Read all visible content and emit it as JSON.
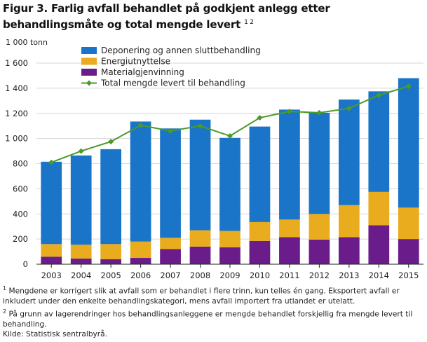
{
  "figure": {
    "title": "Figur 3. Farlig avfall behandlet på godkjent anlegg etter behandlingsmåte og total mengde levert",
    "title_refs": "1 2",
    "unit": "1 000 tonn",
    "notes": [
      {
        "ref": "1",
        "text": "Mengdene er korrigert slik at avfall som er behandlet i flere trinn, kun telles én gang. Eksportert avfall er inkludert under den enkelte behandlingskategori, mens avfall importert fra utlandet er utelatt."
      },
      {
        "ref": "2",
        "text": "På grunn av lagerendringer hos behandlingsanleggene er mengde behandlet forskjellig fra mengde levert til behandling."
      }
    ],
    "source": "Kilde: Statistisk sentralbyrå."
  },
  "colors": {
    "deponering": "#1a75c8",
    "energi": "#e8ac1e",
    "material": "#6a1d8a",
    "total": "#4a9a2a"
  },
  "chart_data": {
    "type": "bar",
    "stacked": true,
    "categories": [
      "2003",
      "2004",
      "2005",
      "2006",
      "2007",
      "2008",
      "2009",
      "2010",
      "2011",
      "2012",
      "2013",
      "2014",
      "2015"
    ],
    "series": [
      {
        "name": "Materialgjenvinning",
        "kind": "bar",
        "color_key": "material",
        "values": [
          60,
          45,
          40,
          50,
          120,
          140,
          135,
          185,
          215,
          195,
          215,
          310,
          200
        ]
      },
      {
        "name": "Energiutnyttelse",
        "kind": "bar",
        "color_key": "energi",
        "values": [
          100,
          110,
          120,
          130,
          90,
          130,
          130,
          150,
          140,
          205,
          255,
          265,
          250
        ]
      },
      {
        "name": "Deponering og annen sluttbehandling",
        "kind": "bar",
        "color_key": "deponering",
        "values": [
          655,
          710,
          755,
          955,
          870,
          880,
          740,
          760,
          875,
          805,
          840,
          800,
          1030
        ]
      },
      {
        "name": "Total mengde levert til behandling",
        "kind": "line",
        "color_key": "total",
        "values": [
          810,
          900,
          975,
          1105,
          1060,
          1100,
          1020,
          1165,
          1215,
          1205,
          1240,
          1345,
          1415
        ]
      }
    ],
    "legend_order": [
      "Deponering og annen sluttbehandling",
      "Energiutnyttelse",
      "Materialgjenvinning",
      "Total mengde levert til behandling"
    ],
    "ylim": [
      0,
      1600
    ],
    "yticks": [
      0,
      200,
      400,
      600,
      800,
      1000,
      1200,
      1400,
      1600
    ],
    "ytick_labels": [
      "0",
      "200",
      "400",
      "600",
      "800",
      "1 000",
      "1 200",
      "1 400",
      "1 600"
    ],
    "ylabel": "1 000 tonn",
    "xlabel": "",
    "grid": true,
    "legend": "top-left"
  }
}
